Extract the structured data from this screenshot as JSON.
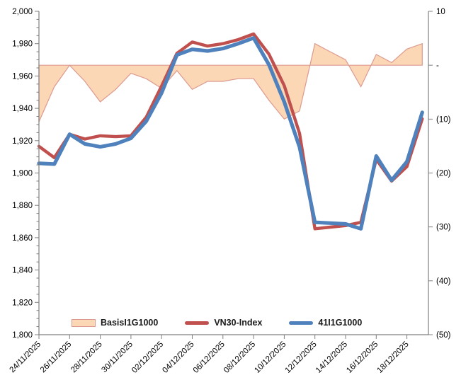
{
  "chart_data": {
    "type": "line",
    "x": [
      "24/11/2025",
      "25/11/2025",
      "26/11/2025",
      "27/11/2025",
      "28/11/2025",
      "29/11/2025",
      "30/11/2025",
      "01/12/2025",
      "02/12/2025",
      "03/12/2025",
      "04/12/2025",
      "05/12/2025",
      "06/12/2025",
      "07/12/2025",
      "08/12/2025",
      "09/12/2025",
      "10/12/2025",
      "11/12/2025",
      "12/12/2025",
      "13/12/2025",
      "14/12/2025",
      "15/12/2025",
      "16/12/2025",
      "17/12/2025",
      "18/12/2025",
      "19/12/2025"
    ],
    "x_tick_labels": [
      "24/11/2025",
      "26/11/2025",
      "28/11/2025",
      "30/11/2025",
      "02/12/2025",
      "04/12/2025",
      "06/12/2025",
      "08/12/2025",
      "10/12/2025",
      "12/12/2025",
      "14/12/2025",
      "16/12/2025",
      "18/12/2025"
    ],
    "series": [
      {
        "name": "BasisI1G1000",
        "type": "area",
        "axis": "right",
        "fill": "#FBD7B6",
        "stroke": "#DC9A8F",
        "values": [
          -10.5,
          -4,
          0,
          -3,
          -6.8,
          -4.5,
          -1.5,
          -2.5,
          -4.3,
          -1,
          -4.5,
          -3,
          -3,
          -2.5,
          -2.5,
          -6.5,
          -10,
          -8.5,
          4,
          2.5,
          1,
          -4,
          2,
          0.5,
          3,
          4
        ]
      },
      {
        "name": "VN30-Index",
        "type": "line",
        "axis": "left",
        "color": "#C0504D",
        "values": [
          1916.5,
          1909.5,
          1924,
          1921,
          1923,
          1922.5,
          1923,
          1934.5,
          1953.8,
          1974,
          1981,
          1978.5,
          1980,
          1982.5,
          1986,
          1973.5,
          1954,
          1924.5,
          1865.5,
          1866.5,
          1867.5,
          1869.5,
          1908.5,
          1895,
          1904,
          1933.5
        ]
      },
      {
        "name": "41I1G1000",
        "type": "line",
        "axis": "left",
        "color": "#4F81BD",
        "values": [
          1906,
          1905.5,
          1924,
          1918,
          1916.2,
          1918,
          1921.5,
          1932,
          1949.5,
          1973,
          1976.5,
          1975.5,
          1977,
          1980,
          1983.5,
          1967,
          1944,
          1916,
          1869.5,
          1869,
          1868.5,
          1865.5,
          1910.5,
          1895.5,
          1907,
          1937.5
        ]
      }
    ],
    "left_axis": {
      "min": 1800,
      "max": 2000,
      "major": 20,
      "minor": 5,
      "tick_labels": [
        "2,000",
        "1,980",
        "1,960",
        "1,940",
        "1,920",
        "1,900",
        "1,880",
        "1,860",
        "1,840",
        "1,820",
        "1,800"
      ]
    },
    "right_axis": {
      "min": -50,
      "max": 10,
      "major": 10,
      "tick_values": [
        10,
        0,
        -10,
        -20,
        -30,
        -40,
        -50
      ],
      "tick_labels": [
        "10",
        "-",
        "(10)",
        "(20)",
        "(30)",
        "(40)",
        "(50)"
      ],
      "zero_on_left_scale": 1966.6667
    },
    "grid": "off",
    "legend_position": "bottom-inside",
    "title": "",
    "xlabel": "",
    "ylabel": ""
  },
  "legend": {
    "items": [
      {
        "label": "BasisI1G1000"
      },
      {
        "label": "VN30-Index"
      },
      {
        "label": "41I1G1000"
      }
    ]
  },
  "colors": {
    "axis_line": "#808080",
    "tick_text": "#000000",
    "red_line": "#C0504D",
    "blue_line": "#4F81BD",
    "area_fill": "#FBD7B6",
    "area_stroke": "#DC9A8F"
  }
}
